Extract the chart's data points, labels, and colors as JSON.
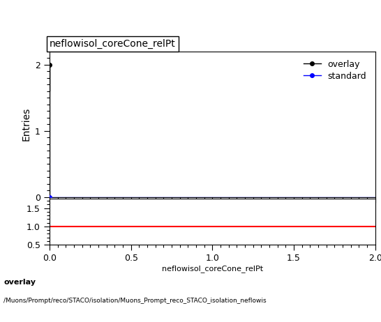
{
  "title": "neflowisol_coreCone_relPt",
  "xlabel": "neflowisol_coreCone_relPt",
  "ylabel_main": "Entries",
  "xlim": [
    0,
    2
  ],
  "ylim_main": [
    0,
    2.2
  ],
  "ylim_ratio": [
    0.5,
    1.75
  ],
  "ratio_y": 1.0,
  "overlay_color": "#000000",
  "standard_color": "#0000ff",
  "ratio_color": "#ff0000",
  "footer_line1": "overlay",
  "footer_line2": "/Muons/Prompt/reco/STACO/isolation/Muons_Prompt_reco_STACO_isolation_neflowis",
  "main_yticks": [
    0,
    1,
    2
  ],
  "ratio_yticks": [
    0.5,
    1,
    1.5
  ],
  "ratio_xticks": [
    0,
    0.5,
    1,
    1.5,
    2
  ]
}
